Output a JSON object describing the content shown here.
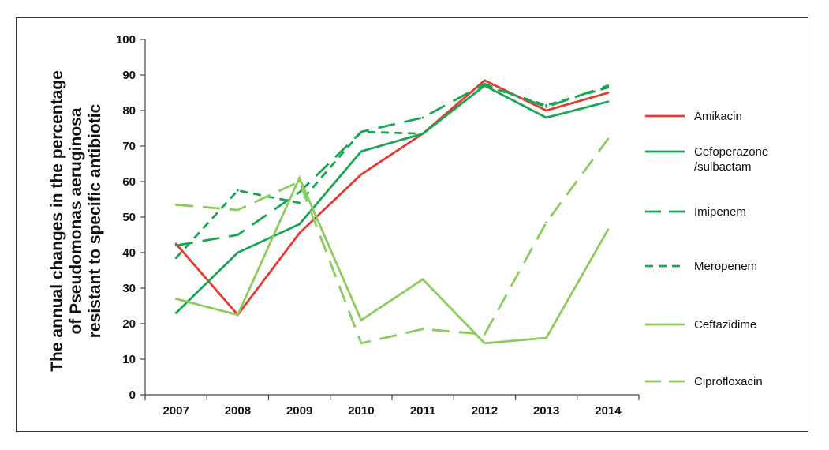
{
  "chart_data": {
    "type": "line",
    "title": "",
    "xlabel": "",
    "ylabel": [
      "The annual changes in the percentage",
      "of Pseudomonas aeruginosa",
      "resistant to specific antibiotic"
    ],
    "ylim": [
      0,
      100
    ],
    "yticks": [
      0,
      10,
      20,
      30,
      40,
      50,
      60,
      70,
      80,
      90,
      100
    ],
    "categories": [
      "2007",
      "2008",
      "2009",
      "2010",
      "2011",
      "2012",
      "2013",
      "2014"
    ],
    "grid": false,
    "legend_position": "right",
    "series": [
      {
        "name": [
          "Amikacin"
        ],
        "color": "#e8392e",
        "dash": "solid",
        "values": [
          42.5,
          22.5,
          45.5,
          62,
          73.5,
          88.5,
          80,
          85
        ]
      },
      {
        "name": [
          "Cefoperazone",
          "/sulbactam"
        ],
        "color": "#1aa554",
        "dash": "solid",
        "values": [
          23,
          40,
          48,
          68.5,
          73.5,
          87,
          78,
          82.5
        ]
      },
      {
        "name": [
          "Imipenem"
        ],
        "color": "#1aa554",
        "dash": "long",
        "values": [
          42,
          45,
          57,
          74,
          78,
          87.5,
          81,
          87
        ]
      },
      {
        "name": [
          "Meropenem"
        ],
        "color": "#1aa554",
        "dash": "short",
        "values": [
          38.5,
          57.5,
          54,
          74,
          73.5,
          87,
          81.5,
          86.5
        ]
      },
      {
        "name": [
          "Ceftazidime"
        ],
        "color": "#8dcb5f",
        "dash": "solid",
        "values": [
          27,
          22.5,
          61,
          21,
          32.5,
          14.5,
          16,
          46.5
        ]
      },
      {
        "name": [
          "Ciprofloxacin"
        ],
        "color": "#8dcb5f",
        "dash": "long",
        "values": [
          53.5,
          52,
          60,
          14.5,
          18.5,
          17,
          48.5,
          72
        ]
      }
    ]
  }
}
